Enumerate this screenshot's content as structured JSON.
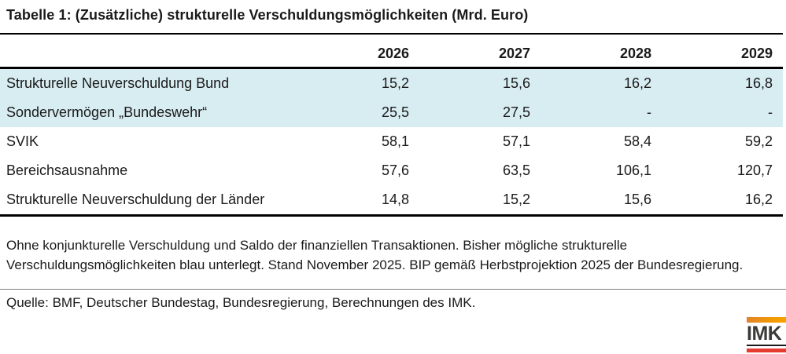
{
  "title": "Tabelle 1: (Zusätzliche) strukturelle Verschuldungsmöglichkeiten (Mrd. Euro)",
  "table": {
    "columns": [
      "",
      "2026",
      "2027",
      "2028",
      "2029"
    ],
    "rows": [
      {
        "label": "Strukturelle Neuverschuldung Bund",
        "values": [
          "15,2",
          "15,6",
          "16,2",
          "16,8"
        ],
        "highlighted": true
      },
      {
        "label": "Sondervermögen „Bundeswehr“",
        "values": [
          "25,5",
          "27,5",
          "-",
          "-"
        ],
        "highlighted": true
      },
      {
        "label": "SVIK",
        "values": [
          "58,1",
          "57,1",
          "58,4",
          "59,2"
        ],
        "highlighted": false
      },
      {
        "label": "Bereichsausnahme",
        "values": [
          "57,6",
          "63,5",
          "106,1",
          "120,7"
        ],
        "highlighted": false
      },
      {
        "label": "Strukturelle Neuverschuldung der Länder",
        "values": [
          "14,8",
          "15,2",
          "15,6",
          "16,2"
        ],
        "highlighted": false
      }
    ],
    "highlight_color": "#d8edf2"
  },
  "chart_data": {
    "type": "table",
    "title": "Tabelle 1: (Zusätzliche) strukturelle Verschuldungsmöglichkeiten (Mrd. Euro)",
    "categories": [
      "2026",
      "2027",
      "2028",
      "2029"
    ],
    "series": [
      {
        "name": "Strukturelle Neuverschuldung Bund",
        "values": [
          15.2,
          15.6,
          16.2,
          16.8
        ]
      },
      {
        "name": "Sondervermögen „Bundeswehr“",
        "values": [
          25.5,
          27.5,
          null,
          null
        ]
      },
      {
        "name": "SVIK",
        "values": [
          58.1,
          57.1,
          58.4,
          59.2
        ]
      },
      {
        "name": "Bereichsausnahme",
        "values": [
          57.6,
          63.5,
          106.1,
          120.7
        ]
      },
      {
        "name": "Strukturelle Neuverschuldung der Länder",
        "values": [
          14.8,
          15.2,
          15.6,
          16.2
        ]
      }
    ]
  },
  "note": "Ohne konjunkturelle Verschuldung und Saldo der finanziellen Transaktionen. Bisher mögliche strukturelle Verschuldungsmöglichkeiten blau unterlegt. Stand November 2025. BIP gemäß Herbstprojektion 2025 der Bundesregierung.",
  "source": "Quelle: BMF, Deutscher Bundestag, Bundesregierung, Berechnungen des IMK.",
  "logo": {
    "text": "IMK",
    "orange_color": "#f49b00",
    "red_color": "#e63b2e",
    "text_color": "#3a3a39"
  }
}
